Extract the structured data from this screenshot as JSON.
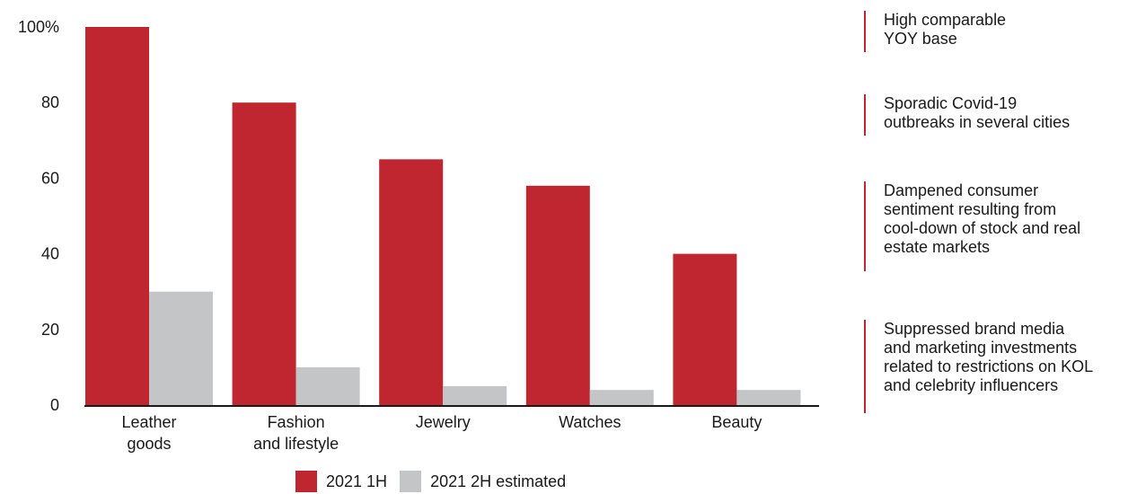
{
  "chart_data": {
    "type": "bar",
    "categories": [
      "Leather goods",
      "Fashion and lifestyle",
      "Jewelry",
      "Watches",
      "Beauty"
    ],
    "category_lines": [
      [
        "Leather",
        "goods"
      ],
      [
        "Fashion",
        "and lifestyle"
      ],
      [
        "Jewelry"
      ],
      [
        "Watches"
      ],
      [
        "Beauty"
      ]
    ],
    "series": [
      {
        "name": "2021 1H",
        "color": "#c0262f",
        "values": [
          100,
          80,
          65,
          58,
          40
        ]
      },
      {
        "name": "2021 2H estimated",
        "color": "#c4c5c7",
        "values": [
          30,
          10,
          5,
          4,
          4
        ]
      }
    ],
    "ylim": [
      0,
      100
    ],
    "yticks": [
      0,
      20,
      40,
      60,
      80,
      100
    ],
    "ytick_labels": [
      "0",
      "20",
      "40",
      "60",
      "80",
      "100%"
    ],
    "grid": false,
    "legend_position": "bottom"
  },
  "notes": [
    "High comparable\nYOY base",
    "Sporadic Covid-19\noutbreaks in several cities",
    "Dampened consumer\nsentiment resulting from\ncool-down of stock and real\nestate markets",
    "Suppressed brand media\nand marketing investments\nrelated to restrictions on KOL\nand celebrity influencers"
  ]
}
